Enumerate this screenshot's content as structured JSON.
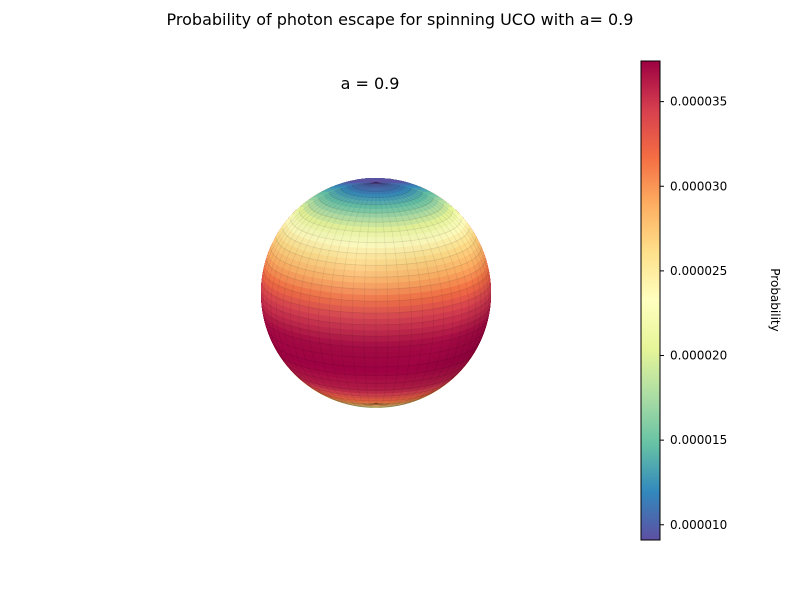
{
  "chart_data": {
    "type": "heatmap",
    "title": "Probability of photon escape for spinning UCO with a= 0.9",
    "subtitle": "a = 0.9",
    "colorbar": {
      "label": "Probability",
      "vmin": 9.1e-06,
      "vmax": 3.74e-05,
      "ticks": [
        "0.000010",
        "0.000015",
        "0.000020",
        "0.000025",
        "0.000030",
        "0.000035"
      ],
      "tick_values": [
        1e-05,
        1.5e-05,
        2e-05,
        2.5e-05,
        3e-05,
        3.5e-05
      ],
      "colormap": "Spectral_r"
    },
    "surface": {
      "shape": "sphere",
      "latitude_profile_deg": [
        90,
        75,
        60,
        45,
        30,
        15,
        0,
        -15,
        -30,
        -45,
        -60,
        -75,
        -90
      ],
      "probability_profile": [
        9.1e-06,
        1.1e-05,
        1.5e-05,
        2.1e-05,
        2.6e-05,
        3e-05,
        3.45e-05,
        3.7e-05,
        3.74e-05,
        3.6e-05,
        3.1e-05,
        2.3e-05,
        1.8e-05
      ]
    }
  }
}
